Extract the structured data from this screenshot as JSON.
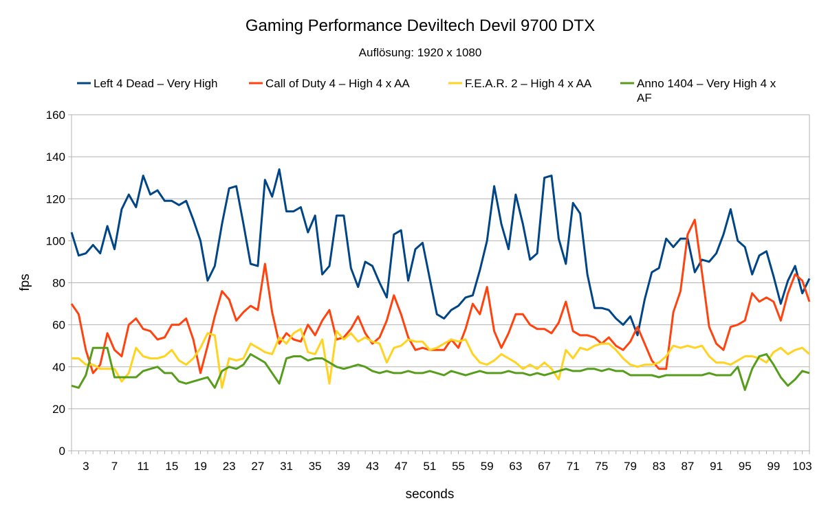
{
  "chart_data": {
    "type": "line",
    "title": "Gaming Performance Deviltech Devil 9700 DTX",
    "subtitle": "Auflösung: 1920 x 1080",
    "xlabel": "seconds",
    "ylabel": "fps",
    "ylim": [
      0,
      160
    ],
    "yticks": [
      0,
      20,
      40,
      60,
      80,
      100,
      120,
      140,
      160
    ],
    "x_count": 104,
    "x_tick_labels": [
      "3",
      "7",
      "11",
      "15",
      "19",
      "23",
      "27",
      "31",
      "35",
      "39",
      "43",
      "47",
      "51",
      "55",
      "59",
      "63",
      "67",
      "71",
      "75",
      "79",
      "83",
      "87",
      "91",
      "95",
      "99",
      "103"
    ],
    "grid": "horizontal",
    "legend_position": "top",
    "series": [
      {
        "name": "Left 4 Dead – Very High",
        "color": "#004586",
        "values": [
          104,
          93,
          94,
          98,
          94,
          107,
          96,
          115,
          122,
          116,
          131,
          122,
          124,
          119,
          119,
          117,
          119,
          110,
          100,
          81,
          88,
          108,
          125,
          126,
          108,
          89,
          88,
          129,
          121,
          134,
          114,
          114,
          116,
          104,
          112,
          84,
          88,
          112,
          112,
          87,
          78,
          90,
          88,
          80,
          73,
          103,
          105,
          81,
          96,
          99,
          82,
          65,
          63,
          67,
          69,
          73,
          74,
          86,
          100,
          126,
          108,
          96,
          122,
          108,
          91,
          94,
          130,
          131,
          101,
          89,
          118,
          113,
          84,
          68,
          68,
          67,
          63,
          60,
          64,
          55,
          72,
          85,
          87,
          101,
          97,
          101,
          101,
          85,
          91,
          90,
          94,
          103,
          115,
          100,
          97,
          84,
          93,
          95,
          83,
          70,
          81,
          88,
          75,
          82
        ]
      },
      {
        "name": "Call of Duty 4 – High 4 x AA",
        "color": "#ff420e",
        "values": [
          70,
          65,
          48,
          37,
          41,
          56,
          48,
          45,
          60,
          63,
          58,
          57,
          53,
          54,
          60,
          60,
          63,
          53,
          37,
          50,
          64,
          76,
          72,
          62,
          66,
          69,
          67,
          89,
          66,
          51,
          56,
          53,
          52,
          60,
          55,
          62,
          67,
          53,
          54,
          58,
          64,
          56,
          51,
          54,
          62,
          74,
          65,
          54,
          48,
          49,
          48,
          48,
          48,
          53,
          49,
          58,
          70,
          65,
          78,
          57,
          49,
          56,
          65,
          65,
          60,
          58,
          58,
          56,
          61,
          71,
          57,
          55,
          55,
          54,
          51,
          54,
          50,
          48,
          52,
          59,
          51,
          43,
          39,
          39,
          66,
          76,
          103,
          110,
          85,
          59,
          51,
          48,
          59,
          60,
          62,
          75,
          71,
          73,
          71,
          62,
          75,
          84,
          81,
          71
        ]
      },
      {
        "name": "F.E.A.R. 2 – High 4 x AA",
        "color": "#ffd320",
        "values": [
          44,
          44,
          41,
          41,
          39,
          39,
          39,
          33,
          37,
          49,
          45,
          44,
          44,
          45,
          48,
          43,
          41,
          44,
          49,
          56,
          55,
          30,
          44,
          43,
          44,
          51,
          49,
          47,
          46,
          54,
          51,
          56,
          58,
          47,
          46,
          53,
          32,
          57,
          53,
          56,
          52,
          54,
          52,
          51,
          42,
          49,
          50,
          53,
          52,
          52,
          48,
          49,
          51,
          53,
          52,
          53,
          46,
          42,
          41,
          43,
          46,
          44,
          42,
          39,
          41,
          39,
          42,
          39,
          34,
          48,
          44,
          49,
          48,
          50,
          51,
          51,
          48,
          44,
          41,
          40,
          41,
          41,
          42,
          45,
          50,
          49,
          50,
          49,
          50,
          45,
          42,
          42,
          41,
          43,
          45,
          45,
          44,
          42,
          47,
          49,
          46,
          48,
          49,
          46
        ]
      },
      {
        "name": "Anno 1404 – Very High 4 x AF",
        "color": "#579d1c",
        "values": [
          31,
          30,
          36,
          49,
          49,
          49,
          35,
          35,
          35,
          35,
          38,
          39,
          40,
          37,
          37,
          33,
          32,
          33,
          34,
          35,
          30,
          38,
          40,
          39,
          41,
          46,
          44,
          42,
          37,
          32,
          44,
          45,
          45,
          43,
          44,
          44,
          42,
          40,
          39,
          40,
          41,
          40,
          38,
          37,
          38,
          37,
          37,
          38,
          37,
          37,
          38,
          37,
          36,
          38,
          37,
          36,
          37,
          38,
          37,
          37,
          37,
          38,
          37,
          37,
          36,
          37,
          36,
          37,
          38,
          39,
          38,
          38,
          39,
          39,
          38,
          39,
          38,
          38,
          36,
          36,
          36,
          36,
          35,
          36,
          36,
          36,
          36,
          36,
          36,
          37,
          36,
          36,
          36,
          40,
          29,
          39,
          45,
          46,
          41,
          35,
          31,
          34,
          38,
          37
        ]
      }
    ]
  }
}
